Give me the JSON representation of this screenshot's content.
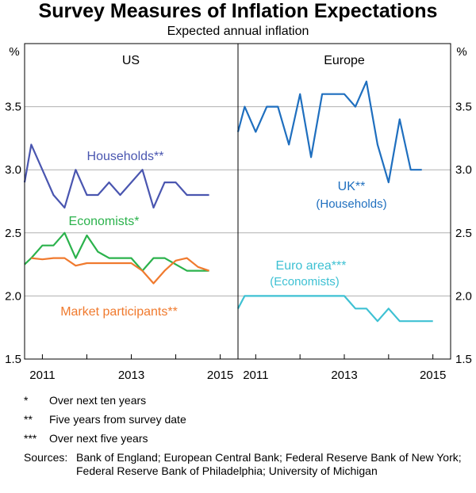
{
  "title": "Survey Measures of Inflation Expectations",
  "subtitle": "Expected annual inflation",
  "y_unit": "%",
  "y_ticks": [
    "1.5",
    "2.0",
    "2.5",
    "3.0",
    "3.5"
  ],
  "notes": [
    {
      "mark": "*",
      "text": "Over next ten years"
    },
    {
      "mark": "**",
      "text": "Five years from survey date"
    },
    {
      "mark": "***",
      "text": "Over next five years"
    }
  ],
  "sources_label": "Sources:",
  "sources_text": "Bank of England; European Central Bank; Federal Reserve Bank of New York; Federal Reserve Bank of Philadelphia; University of Michigan",
  "colors": {
    "households": "#4a56b0",
    "economists": "#2bb24c",
    "market": "#f07a2e",
    "uk": "#1f6fbf",
    "euro": "#3ec1d3",
    "grid": "#b0b0b0"
  },
  "chart_data": [
    {
      "type": "line",
      "panel": "US",
      "ylim": [
        1.5,
        4.0
      ],
      "yticks": [
        1.5,
        2.0,
        2.5,
        3.0,
        3.5
      ],
      "xlim": [
        2010.6,
        2015.4
      ],
      "xticks": [
        "2011",
        "2013",
        "2015"
      ],
      "grid": true,
      "series": [
        {
          "name": "Households**",
          "color_key": "households",
          "x": [
            2010.6,
            2010.75,
            2011.0,
            2011.25,
            2011.5,
            2011.75,
            2012.0,
            2012.25,
            2012.5,
            2012.75,
            2013.0,
            2013.25,
            2013.5,
            2013.75,
            2014.0,
            2014.25,
            2014.5,
            2014.75
          ],
          "y": [
            2.9,
            3.2,
            3.0,
            2.8,
            2.7,
            3.0,
            2.8,
            2.8,
            2.9,
            2.8,
            2.9,
            3.0,
            2.7,
            2.9,
            2.9,
            2.8,
            2.8,
            2.8
          ]
        },
        {
          "name": "Economists*",
          "color_key": "economists",
          "x": [
            2010.6,
            2010.75,
            2011.0,
            2011.25,
            2011.5,
            2011.75,
            2012.0,
            2012.25,
            2012.5,
            2012.75,
            2013.0,
            2013.25,
            2013.5,
            2013.75,
            2014.0,
            2014.25,
            2014.5,
            2014.75
          ],
          "y": [
            2.25,
            2.3,
            2.4,
            2.4,
            2.5,
            2.3,
            2.48,
            2.35,
            2.3,
            2.3,
            2.3,
            2.2,
            2.3,
            2.3,
            2.25,
            2.2,
            2.2,
            2.2
          ]
        },
        {
          "name": "Market participants**",
          "color_key": "market",
          "x": [
            2010.75,
            2011.0,
            2011.25,
            2011.5,
            2011.75,
            2012.0,
            2012.25,
            2012.5,
            2012.75,
            2013.0,
            2013.25,
            2013.5,
            2013.75,
            2014.0,
            2014.25,
            2014.5,
            2014.75
          ],
          "y": [
            2.3,
            2.29,
            2.3,
            2.3,
            2.24,
            2.26,
            2.26,
            2.26,
            2.26,
            2.26,
            2.2,
            2.1,
            2.2,
            2.28,
            2.3,
            2.23,
            2.2
          ]
        }
      ]
    },
    {
      "type": "line",
      "panel": "Europe",
      "ylim": [
        1.5,
        4.0
      ],
      "yticks": [
        1.5,
        2.0,
        2.5,
        3.0,
        3.5
      ],
      "xlim": [
        2010.6,
        2015.4
      ],
      "xticks": [
        "2011",
        "2013",
        "2015"
      ],
      "grid": true,
      "series": [
        {
          "name": "UK**",
          "sublabel": "(Households)",
          "color_key": "uk",
          "x": [
            2010.6,
            2010.75,
            2011.0,
            2011.25,
            2011.5,
            2011.75,
            2012.0,
            2012.25,
            2012.5,
            2012.75,
            2013.0,
            2013.25,
            2013.5,
            2013.75,
            2014.0,
            2014.25,
            2014.5,
            2014.75
          ],
          "y": [
            3.3,
            3.5,
            3.3,
            3.5,
            3.5,
            3.2,
            3.6,
            3.1,
            3.6,
            3.6,
            3.6,
            3.5,
            3.7,
            3.2,
            2.9,
            3.4,
            3.0,
            3.0
          ]
        },
        {
          "name": "Euro area***",
          "sublabel": "(Economists)",
          "color_key": "euro",
          "x": [
            2010.6,
            2010.75,
            2011.0,
            2011.25,
            2011.5,
            2011.75,
            2012.0,
            2012.25,
            2012.5,
            2012.75,
            2013.0,
            2013.25,
            2013.5,
            2013.75,
            2014.0,
            2014.25,
            2014.5,
            2014.75,
            2015.0
          ],
          "y": [
            1.9,
            2.0,
            2.0,
            2.0,
            2.0,
            2.0,
            2.0,
            2.0,
            2.0,
            2.0,
            2.0,
            1.9,
            1.9,
            1.8,
            1.9,
            1.8,
            1.8,
            1.8,
            1.8
          ]
        }
      ]
    }
  ]
}
